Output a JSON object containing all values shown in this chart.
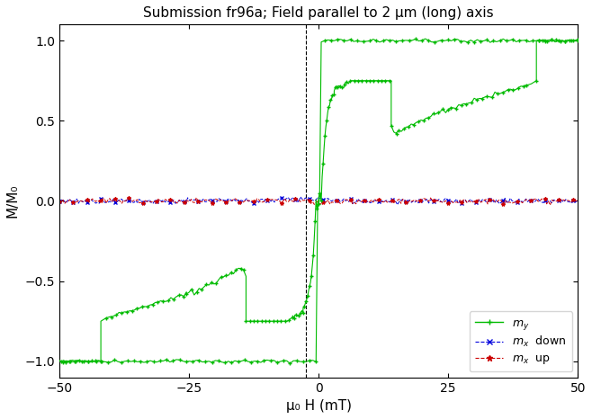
{
  "title": "Submission fr96a; Field parallel to 2 μm (long) axis",
  "xlabel": "μ₀ H (mT)",
  "ylabel": "M/M₀",
  "xlim": [
    -50,
    50
  ],
  "ylim": [
    -1.1,
    1.1
  ],
  "yticks": [
    -1.0,
    -0.5,
    0.0,
    0.5,
    1.0
  ],
  "xticks": [
    -50,
    -25,
    0,
    25,
    50
  ],
  "vline_x": -2.5,
  "bg_color": "#ffffff",
  "my_color": "#00bb00",
  "mx_down_color": "#0000dd",
  "mx_up_color": "#cc0000"
}
